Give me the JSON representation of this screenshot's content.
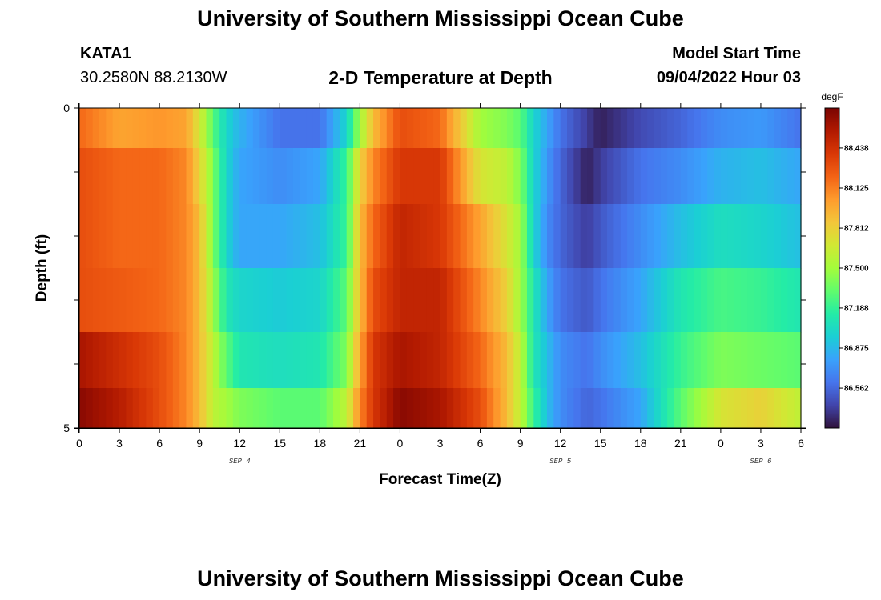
{
  "header": {
    "title_top": "University of Southern Mississippi Ocean Cube",
    "title_bottom": "University of Southern Mississippi Ocean Cube",
    "station": "KATA1",
    "coordinates": "30.2580N  88.2130W",
    "subtitle": "2-D Temperature at Depth",
    "model_start_label": "Model Start Time",
    "model_start_value": "09/04/2022 Hour 03"
  },
  "chart_data": {
    "type": "heatmap",
    "title": "2-D Temperature at Depth",
    "xlabel": "Forecast Time(Z)",
    "ylabel": "Depth (ft)",
    "x_hours_range": [
      0,
      54
    ],
    "x_ticks": [
      {
        "hour": 0,
        "label": "0"
      },
      {
        "hour": 3,
        "label": "3"
      },
      {
        "hour": 6,
        "label": "6"
      },
      {
        "hour": 9,
        "label": "9"
      },
      {
        "hour": 12,
        "label": "12"
      },
      {
        "hour": 15,
        "label": "15"
      },
      {
        "hour": 18,
        "label": "18"
      },
      {
        "hour": 21,
        "label": "21"
      },
      {
        "hour": 24,
        "label": "0"
      },
      {
        "hour": 27,
        "label": "3"
      },
      {
        "hour": 30,
        "label": "6"
      },
      {
        "hour": 33,
        "label": "9"
      },
      {
        "hour": 36,
        "label": "12"
      },
      {
        "hour": 39,
        "label": "15"
      },
      {
        "hour": 42,
        "label": "18"
      },
      {
        "hour": 45,
        "label": "21"
      },
      {
        "hour": 48,
        "label": "0"
      },
      {
        "hour": 51,
        "label": "3"
      },
      {
        "hour": 54,
        "label": "6"
      }
    ],
    "date_labels": [
      {
        "hour": 12,
        "label": "SEP 4"
      },
      {
        "hour": 36,
        "label": "SEP 5"
      },
      {
        "hour": 51,
        "label": "SEP 6"
      }
    ],
    "ylim": [
      0,
      5
    ],
    "y_tick_labels": [
      {
        "depth": 0,
        "label": "0"
      },
      {
        "depth": 5,
        "label": "5"
      }
    ],
    "y_minor_ticks": [
      1,
      2,
      3,
      4
    ],
    "colorbar": {
      "unit": "degF",
      "range": [
        86.25,
        88.75
      ],
      "ticks": [
        "88.438",
        "88.125",
        "87.812",
        "87.500",
        "87.188",
        "86.875",
        "86.562"
      ],
      "colors": [
        "#30123b",
        "#4145ab",
        "#4675ed",
        "#39a2fc",
        "#1bcfd4",
        "#24eca6",
        "#61fc6c",
        "#a4fc3b",
        "#d1e834",
        "#f3c63a",
        "#fe9b2d",
        "#f36315",
        "#d93806",
        "#b11901",
        "#7a0402"
      ]
    },
    "depth_layers": [
      0.25,
      1.0,
      2.0,
      3.0,
      4.0,
      4.75
    ],
    "time_keypoints_hours": [
      0,
      3,
      6,
      8,
      9,
      10,
      11,
      12,
      15,
      18,
      20,
      21,
      22,
      24,
      27,
      30,
      32,
      33,
      34,
      35,
      36,
      38,
      39,
      42,
      45,
      48,
      51,
      54
    ],
    "temperature_degF": [
      [
        88.2,
        88.0,
        88.05,
        88.0,
        87.7,
        87.3,
        87.0,
        86.85,
        86.6,
        86.6,
        87.0,
        87.5,
        87.9,
        88.3,
        88.2,
        87.5,
        87.4,
        87.3,
        87.0,
        86.8,
        86.6,
        86.4,
        86.3,
        86.45,
        86.55,
        86.7,
        86.75,
        86.6
      ],
      [
        88.3,
        88.2,
        88.2,
        88.1,
        87.8,
        87.4,
        87.0,
        86.8,
        86.7,
        86.8,
        87.2,
        87.8,
        88.1,
        88.4,
        88.4,
        87.7,
        87.6,
        87.4,
        87.0,
        86.75,
        86.55,
        86.3,
        86.4,
        86.6,
        86.7,
        86.85,
        86.9,
        86.8
      ],
      [
        88.3,
        88.2,
        88.2,
        88.1,
        87.9,
        87.4,
        87.0,
        86.8,
        86.8,
        86.9,
        87.2,
        87.9,
        88.2,
        88.5,
        88.4,
        88.0,
        87.7,
        87.5,
        87.0,
        86.7,
        86.55,
        86.4,
        86.5,
        86.7,
        86.9,
        87.05,
        87.0,
        86.9
      ],
      [
        88.3,
        88.25,
        88.2,
        88.1,
        87.9,
        87.5,
        87.1,
        87.0,
        86.95,
        87.0,
        87.3,
        87.9,
        88.3,
        88.5,
        88.5,
        88.1,
        87.8,
        87.5,
        87.1,
        86.8,
        86.6,
        86.5,
        86.6,
        86.8,
        87.1,
        87.25,
        87.2,
        87.1
      ],
      [
        88.6,
        88.45,
        88.3,
        88.1,
        87.9,
        87.6,
        87.3,
        87.1,
        87.05,
        87.1,
        87.4,
        88.0,
        88.4,
        88.6,
        88.5,
        88.2,
        87.9,
        87.6,
        87.1,
        86.9,
        86.7,
        86.6,
        86.7,
        86.9,
        87.2,
        87.4,
        87.35,
        87.3
      ],
      [
        88.7,
        88.55,
        88.3,
        88.1,
        87.9,
        87.6,
        87.5,
        87.4,
        87.3,
        87.3,
        87.6,
        88.1,
        88.4,
        88.7,
        88.6,
        88.3,
        87.9,
        87.6,
        87.2,
        86.9,
        86.7,
        86.55,
        86.6,
        86.8,
        87.3,
        87.7,
        87.8,
        87.6
      ]
    ]
  }
}
